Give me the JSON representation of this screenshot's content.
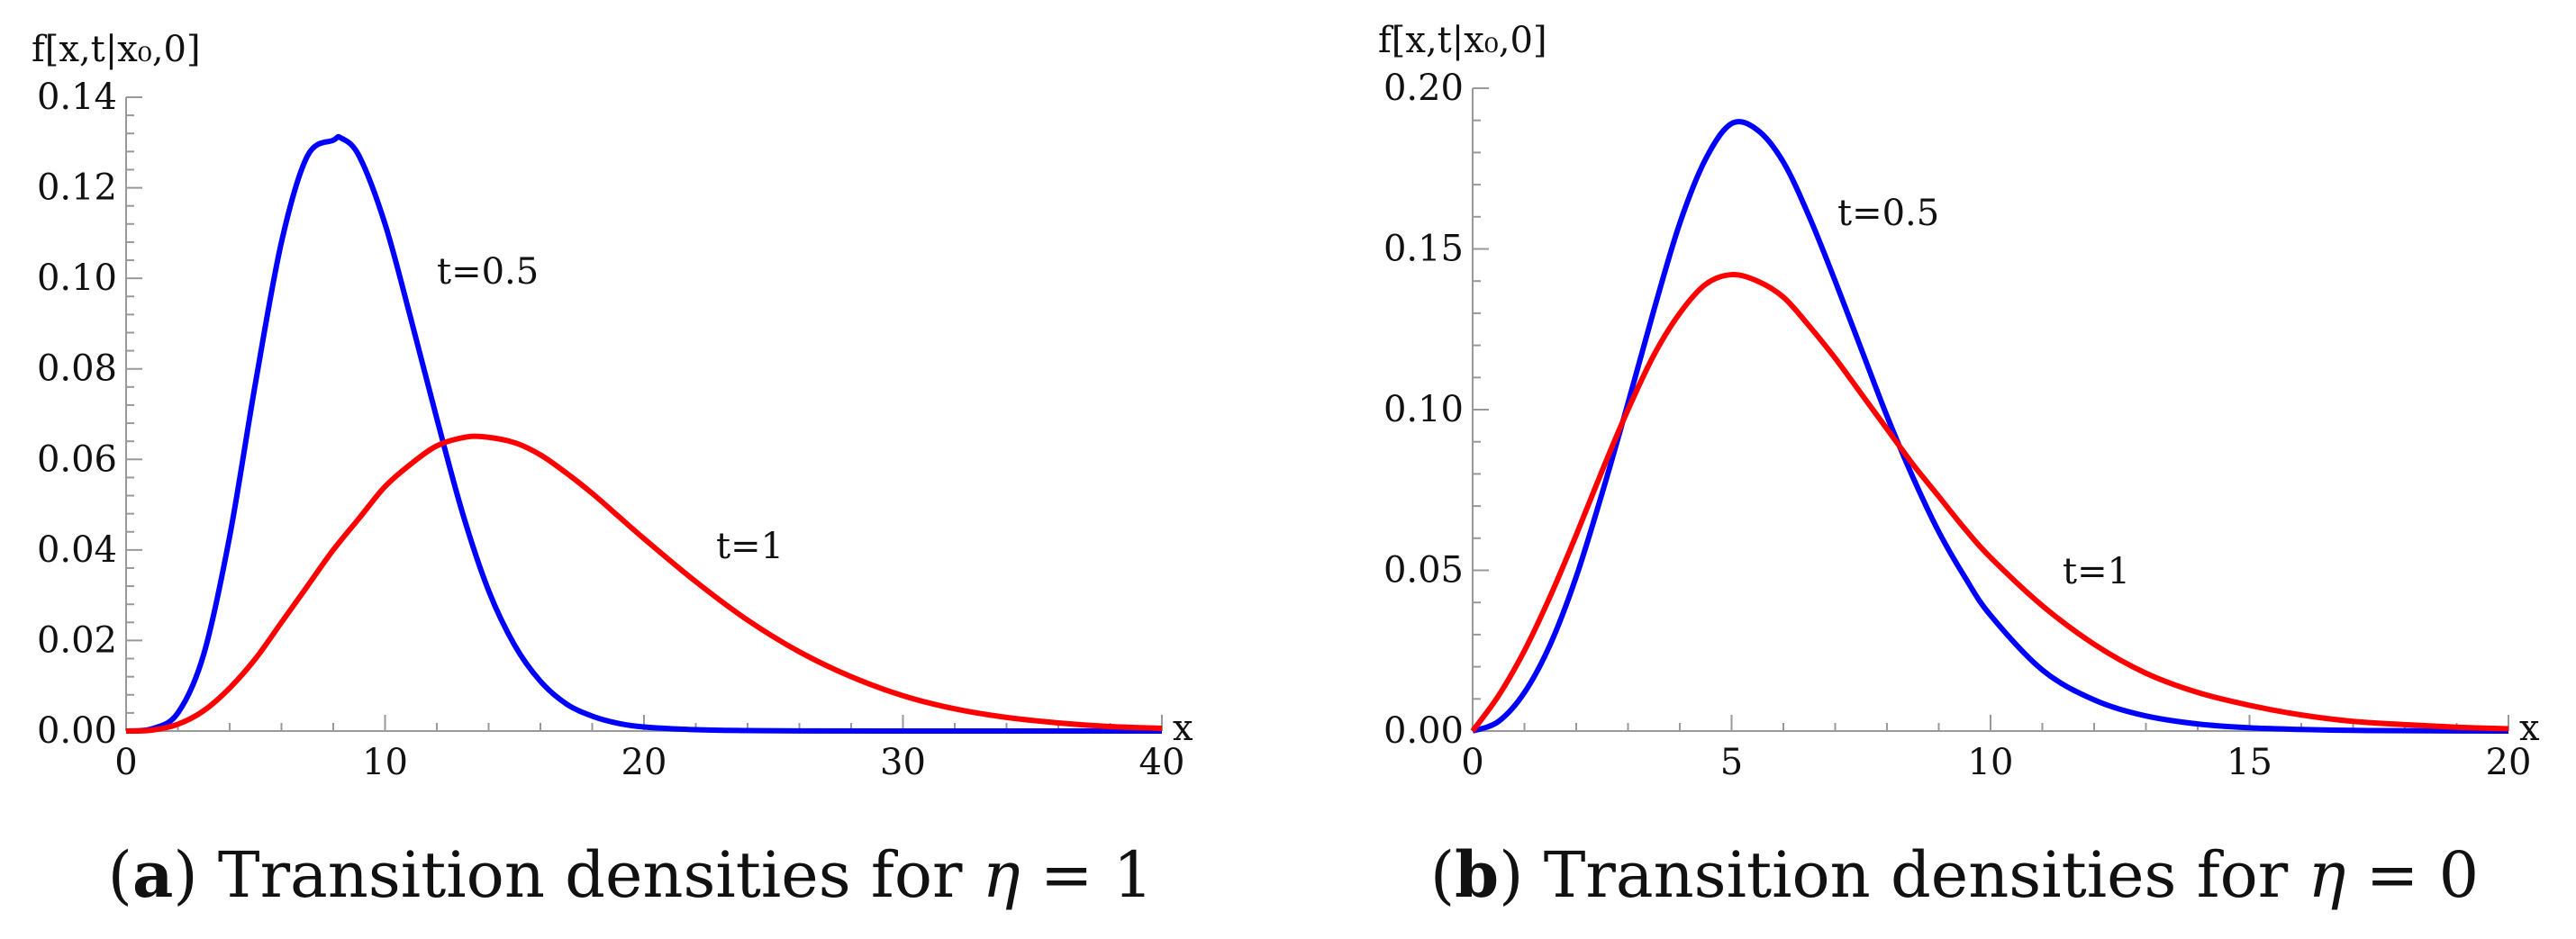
{
  "chart_data": [
    {
      "type": "line",
      "panel_letter": "a",
      "caption": "Transition densities for η = 1",
      "caption_prefix": "Transition densities for ",
      "caption_symbol": "η",
      "caption_value": " = 1",
      "ylabel": "f[x,t|x₀,0]",
      "xlabel": "x",
      "xlim": [
        0,
        40
      ],
      "ylim": [
        0,
        0.14
      ],
      "x_ticks": [
        "0",
        "10",
        "20",
        "30",
        "40"
      ],
      "y_ticks": [
        "0.00",
        "0.02",
        "0.04",
        "0.06",
        "0.08",
        "0.10",
        "0.12",
        "0.14"
      ],
      "series": [
        {
          "name": "t=0.5",
          "color": "#0000ff",
          "x": [
            0,
            1,
            2,
            3,
            4,
            5,
            6,
            7,
            8,
            8.3,
            9,
            10,
            11,
            12,
            13,
            14,
            15,
            16,
            17,
            18,
            19,
            20,
            22,
            24,
            26,
            30,
            35,
            40
          ],
          "y": [
            0,
            0.0005,
            0.004,
            0.017,
            0.043,
            0.077,
            0.108,
            0.127,
            0.1305,
            0.131,
            0.127,
            0.112,
            0.091,
            0.069,
            0.048,
            0.031,
            0.019,
            0.011,
            0.006,
            0.0033,
            0.0017,
            0.0009,
            0.0003,
            0.0001,
            3e-05,
            0,
            0,
            0
          ]
        },
        {
          "name": "t=1",
          "color": "#ff0000",
          "x": [
            0,
            1,
            2,
            3,
            4,
            5,
            6,
            7,
            8,
            9,
            10,
            11,
            12,
            13,
            13.8,
            15,
            16,
            17,
            18,
            19,
            20,
            22,
            24,
            26,
            28,
            30,
            32,
            34,
            36,
            38,
            40
          ],
          "y": [
            0,
            0.0002,
            0.0015,
            0.0045,
            0.0095,
            0.016,
            0.024,
            0.032,
            0.04,
            0.047,
            0.054,
            0.059,
            0.063,
            0.0648,
            0.065,
            0.0637,
            0.061,
            0.057,
            0.0525,
            0.0475,
            0.0425,
            0.033,
            0.0245,
            0.0175,
            0.012,
            0.0078,
            0.0049,
            0.003,
            0.0018,
            0.001,
            0.0006
          ]
        }
      ]
    },
    {
      "type": "line",
      "panel_letter": "b",
      "caption": "Transition densities for η = 0",
      "caption_prefix": "Transition densities for ",
      "caption_symbol": "η",
      "caption_value": " = 0",
      "ylabel": "f[x,t|x₀,0]",
      "xlabel": "x",
      "xlim": [
        0,
        20
      ],
      "ylim": [
        0,
        0.2
      ],
      "x_ticks": [
        "0",
        "5",
        "10",
        "15",
        "20"
      ],
      "y_ticks": [
        "0.00",
        "0.05",
        "0.10",
        "0.15",
        "0.20"
      ],
      "series": [
        {
          "name": "t=0.5",
          "color": "#0000ff",
          "x": [
            0,
            0.5,
            1,
            1.5,
            2,
            2.5,
            3,
            3.5,
            4,
            4.5,
            5,
            5.5,
            6,
            6.5,
            7,
            7.5,
            8,
            8.5,
            9,
            9.5,
            10,
            11,
            12,
            13,
            14,
            15,
            16,
            17,
            18,
            20
          ],
          "y": [
            0,
            0.003,
            0.012,
            0.027,
            0.048,
            0.074,
            0.102,
            0.131,
            0.158,
            0.178,
            0.189,
            0.187,
            0.177,
            0.16,
            0.14,
            0.119,
            0.098,
            0.079,
            0.062,
            0.048,
            0.036,
            0.019,
            0.0097,
            0.0047,
            0.0022,
            0.001,
            0.0005,
            0.0002,
            0.0001,
            0
          ]
        },
        {
          "name": "t=1",
          "color": "#ff0000",
          "x": [
            0,
            0.5,
            1,
            1.5,
            2,
            2.5,
            3,
            3.5,
            4,
            4.5,
            5,
            5.5,
            6,
            6.5,
            7,
            7.5,
            8,
            8.5,
            9,
            9.5,
            10,
            11,
            12,
            13,
            14,
            15,
            16,
            17,
            18,
            19,
            20
          ],
          "y": [
            0,
            0.011,
            0.025,
            0.042,
            0.061,
            0.081,
            0.1,
            0.117,
            0.13,
            0.139,
            0.142,
            0.14,
            0.135,
            0.126,
            0.116,
            0.105,
            0.094,
            0.083,
            0.073,
            0.063,
            0.054,
            0.039,
            0.027,
            0.018,
            0.012,
            0.008,
            0.005,
            0.003,
            0.002,
            0.0012,
            0.0007
          ]
        }
      ]
    }
  ]
}
